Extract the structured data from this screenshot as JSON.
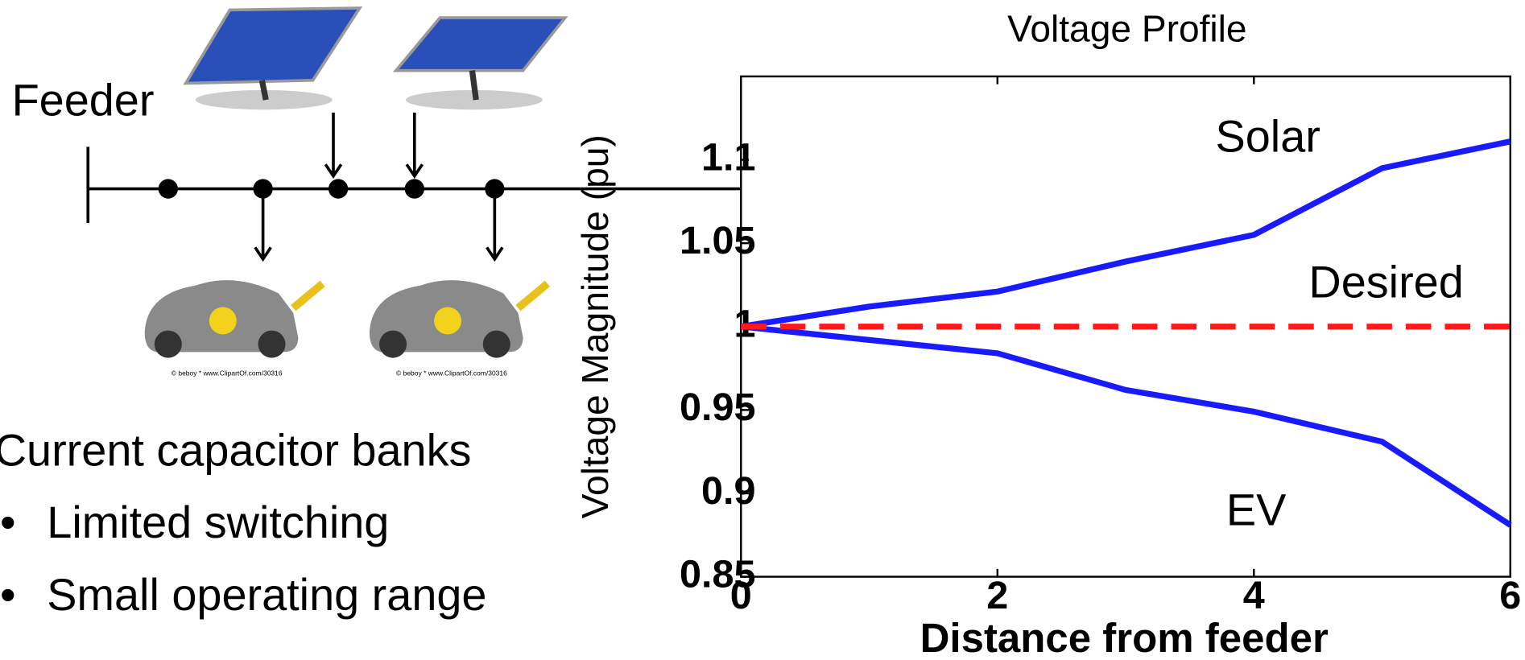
{
  "slide": {
    "feeder_label": "Feeder",
    "bullets": {
      "heading": "Current capacitor banks",
      "items": [
        "Limited switching",
        "Small operating range"
      ]
    },
    "credits": [
      "© beboy * www.ClipartOf.com/30316",
      "© beboy * www.ClipartOf.com/30316"
    ]
  },
  "chart_data": {
    "type": "line",
    "title": "Voltage Profile",
    "x_label": "Distance from feeder",
    "y_label": "Voltage Magnitude (pu)",
    "x": [
      0,
      1,
      2,
      3,
      4,
      5,
      6
    ],
    "series": [
      {
        "name": "Solar",
        "color": "#1a1aff",
        "style": "solid",
        "values": [
          1.0,
          1.012,
          1.021,
          1.039,
          1.055,
          1.095,
          1.111
        ]
      },
      {
        "name": "EV",
        "color": "#1a1aff",
        "style": "solid",
        "values": [
          1.0,
          0.992,
          0.984,
          0.962,
          0.949,
          0.931,
          0.881
        ]
      },
      {
        "name": "Desired",
        "color": "#ff1a1a",
        "style": "dashed",
        "values": [
          1.0,
          1.0,
          1.0,
          1.0,
          1.0,
          1.0,
          1.0
        ]
      }
    ],
    "xlim": [
      0,
      6
    ],
    "xticks": [
      0,
      2,
      4,
      6
    ],
    "ylim": [
      0.85,
      1.15
    ],
    "yticks": [
      0.85,
      0.9,
      0.95,
      1,
      1.05,
      1.1
    ],
    "grid": false
  }
}
